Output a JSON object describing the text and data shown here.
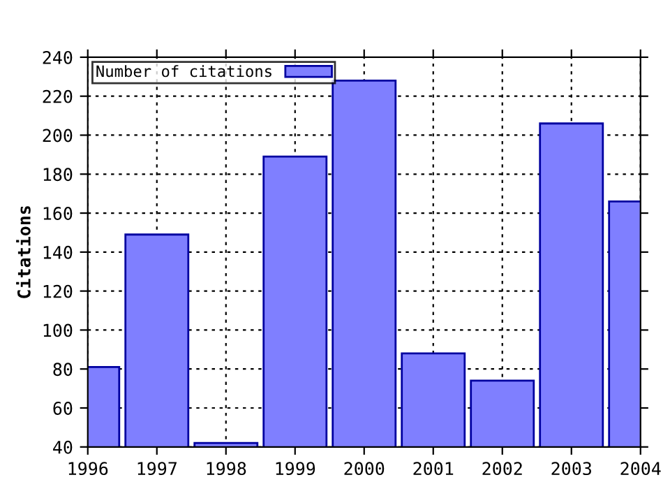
{
  "chart_data": {
    "type": "bar",
    "ylabel": "Citations",
    "x": [
      1996,
      1997,
      1998,
      1999,
      2000,
      2001,
      2002,
      2003,
      2004
    ],
    "series": [
      {
        "name": "Number of citations",
        "color": "#7f7fff",
        "values": [
          81,
          149,
          42,
          189,
          228,
          88,
          74,
          206,
          166
        ]
      }
    ],
    "xlim": [
      1996,
      2004
    ],
    "xticks": [
      1996,
      1997,
      1998,
      1999,
      2000,
      2001,
      2002,
      2003,
      2004
    ],
    "ylim": [
      40,
      240
    ],
    "yticks": [
      40,
      60,
      80,
      100,
      120,
      140,
      160,
      180,
      200,
      220,
      240
    ],
    "grid": true,
    "legend": "top left"
  }
}
